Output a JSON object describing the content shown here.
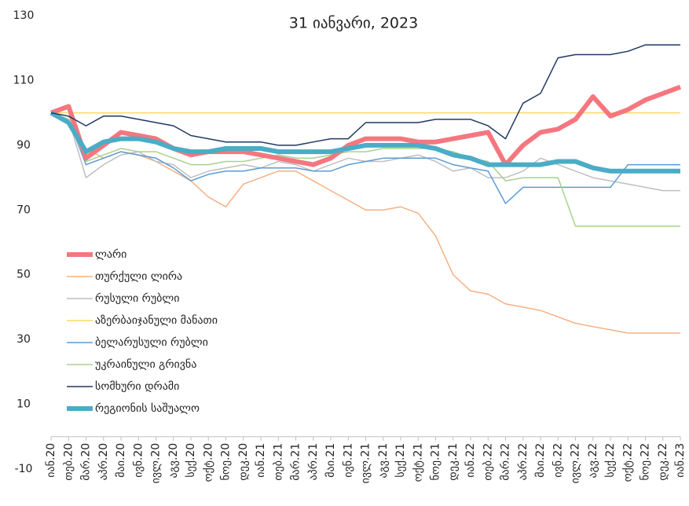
{
  "chart_data": {
    "type": "line",
    "title": "31 იანვარი, 2023",
    "categories": [
      "იან.20",
      "თებ.20",
      "მარ.20",
      "აპრ.20",
      "მაი.20",
      "ივნ.20",
      "ივლ.20",
      "აგვ.20",
      "სექ.20",
      "ოქტ.20",
      "ნოე.20",
      "დეკ.20",
      "იან.21",
      "თებ.21",
      "მარ.21",
      "აპრ.21",
      "მაი.21",
      "ივნ.21",
      "ივლ.21",
      "აგვ.21",
      "სექ.21",
      "ოქტ.21",
      "ნოე.21",
      "დეკ.21",
      "იან.22",
      "თებ.22",
      "მარ.22",
      "აპრ.22",
      "მაი.22",
      "ივნ.22",
      "ივლ.22",
      "აგვ.22",
      "სექ.22",
      "ოქტ.22",
      "ნოე.22",
      "დეკ.22",
      "იან.23"
    ],
    "ylim": [
      -10,
      130
    ],
    "yticks": [
      -10,
      10,
      30,
      50,
      70,
      90,
      110,
      130
    ],
    "grid": false,
    "series": [
      {
        "name": "ლარი",
        "color": "#f4777f",
        "line_width": 6,
        "values": [
          100,
          102,
          86,
          90,
          94,
          93,
          92,
          89,
          87,
          88,
          88,
          88,
          87,
          86,
          85,
          84,
          86,
          90,
          92,
          92,
          92,
          91,
          91,
          92,
          93,
          94,
          84,
          90,
          94,
          95,
          98,
          105,
          99,
          101,
          104,
          106,
          108
        ]
      },
      {
        "name": "თურქული ლირა",
        "color": "#f4b183",
        "line_width": 1.5,
        "values": [
          100,
          99,
          89,
          86,
          88,
          87,
          85,
          82,
          79,
          74,
          71,
          78,
          80,
          82,
          82,
          79,
          76,
          73,
          70,
          70,
          71,
          69,
          62,
          50,
          45,
          44,
          41,
          40,
          39,
          37,
          35,
          34,
          33,
          32,
          32,
          32,
          32
        ]
      },
      {
        "name": "რუსული რუბლი",
        "color": "#bfbfbf",
        "line_width": 1.5,
        "values": [
          100,
          98,
          80,
          84,
          87,
          88,
          85,
          84,
          80,
          82,
          83,
          84,
          83,
          85,
          84,
          82,
          84,
          86,
          85,
          85,
          86,
          87,
          85,
          82,
          83,
          80,
          80,
          82,
          86,
          84,
          82,
          80,
          79,
          78,
          77,
          76,
          76
        ]
      },
      {
        "name": "აზერბაიჯანული მანათი",
        "color": "#ffd966",
        "line_width": 1.5,
        "values": [
          100,
          100,
          100,
          100,
          100,
          100,
          100,
          100,
          100,
          100,
          100,
          100,
          100,
          100,
          100,
          100,
          100,
          100,
          100,
          100,
          100,
          100,
          100,
          100,
          100,
          100,
          100,
          100,
          100,
          100,
          100,
          100,
          100,
          100,
          100,
          100,
          100
        ]
      },
      {
        "name": "ბელარუსული რუბლი",
        "color": "#5b9bd5",
        "line_width": 1.5,
        "values": [
          100,
          98,
          84,
          86,
          88,
          87,
          86,
          83,
          79,
          81,
          82,
          82,
          83,
          83,
          83,
          82,
          82,
          84,
          85,
          86,
          86,
          86,
          86,
          84,
          83,
          82,
          72,
          77,
          77,
          77,
          77,
          77,
          77,
          84,
          84,
          84,
          84
        ]
      },
      {
        "name": "უკრაინული გრივნა",
        "color": "#a9d18e",
        "line_width": 1.5,
        "values": [
          100,
          98,
          85,
          87,
          89,
          88,
          88,
          86,
          84,
          84,
          85,
          85,
          86,
          87,
          86,
          86,
          87,
          88,
          88,
          89,
          89,
          89,
          89,
          88,
          86,
          85,
          79,
          80,
          80,
          80,
          65,
          65,
          65,
          65,
          65,
          65,
          65
        ]
      },
      {
        "name": "სომხური დრამი",
        "color": "#1f3864",
        "line_width": 1.5,
        "values": [
          100,
          99,
          96,
          99,
          99,
          98,
          97,
          96,
          93,
          92,
          91,
          91,
          91,
          90,
          90,
          91,
          92,
          92,
          97,
          97,
          97,
          97,
          98,
          98,
          98,
          96,
          92,
          103,
          106,
          117,
          118,
          118,
          118,
          119,
          121,
          121,
          121
        ]
      },
      {
        "name": "რეგიონის საშუალო",
        "color": "#4bacc6",
        "line_width": 6,
        "values": [
          100,
          97,
          88,
          91,
          92,
          92,
          91,
          89,
          88,
          88,
          89,
          89,
          89,
          88,
          88,
          88,
          88,
          89,
          90,
          90,
          90,
          90,
          89,
          87,
          86,
          84,
          84,
          84,
          84,
          85,
          85,
          83,
          82,
          82,
          82,
          82,
          82
        ]
      }
    ]
  }
}
